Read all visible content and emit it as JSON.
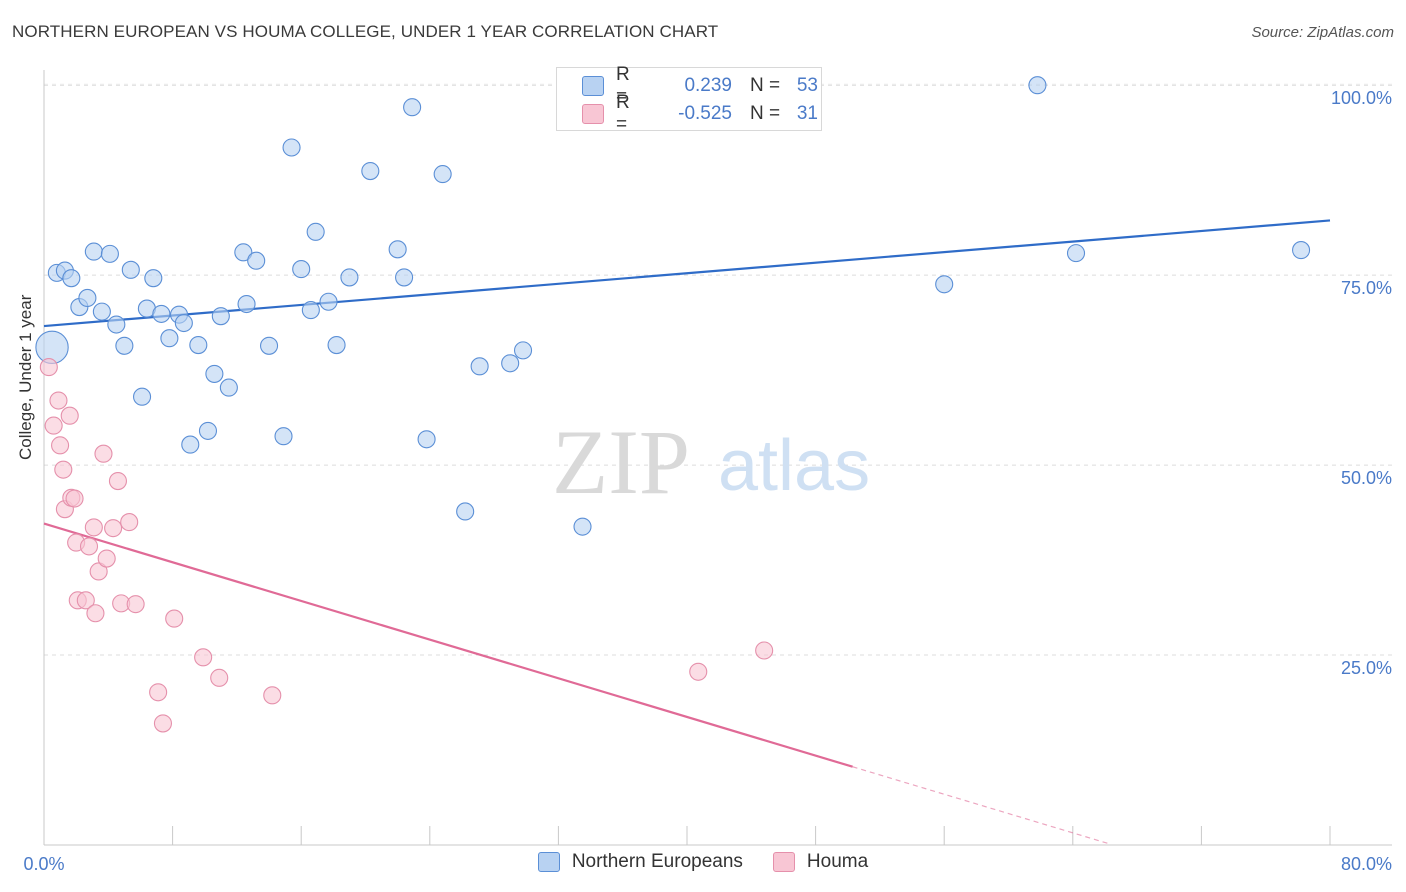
{
  "header": {
    "title": "NORTHERN EUROPEAN VS HOUMA COLLEGE, UNDER 1 YEAR CORRELATION CHART",
    "source": "Source: ZipAtlas.com"
  },
  "watermark": {
    "zip": "ZIP",
    "atlas": "atlas"
  },
  "legend_top": {
    "rows": [
      {
        "r_label": "R =",
        "r_value": "0.239",
        "n_label": "N =",
        "n_value": "53"
      },
      {
        "r_label": "R =",
        "r_value": "-0.525",
        "n_label": "N =",
        "n_value": "31"
      }
    ]
  },
  "legend_bottom": {
    "items": [
      {
        "label": "Northern Europeans"
      },
      {
        "label": "Houma"
      }
    ]
  },
  "colors": {
    "blue_fill": "#b8d2f2",
    "blue_stroke": "#5b8fd6",
    "blue_line": "#2f6cc8",
    "pink_fill": "#f8c6d4",
    "pink_stroke": "#e590ab",
    "pink_line": "#e06a96",
    "grid": "#dcdcdc",
    "tick_label": "#4a7ac8"
  },
  "chart_data": {
    "type": "scatter",
    "title": "NORTHERN EUROPEAN VS HOUMA COLLEGE, UNDER 1 YEAR CORRELATION CHART",
    "xlabel": "",
    "ylabel": "College, Under 1 year",
    "xlim": [
      0,
      80
    ],
    "ylim": [
      0,
      102
    ],
    "x_tick_labels": [
      "0.0%",
      "80.0%"
    ],
    "y_ticks": [
      25,
      50,
      75,
      100
    ],
    "y_tick_labels": [
      "25.0%",
      "50.0%",
      "75.0%",
      "100.0%"
    ],
    "grid": true,
    "legend_position": "top-center",
    "series": [
      {
        "name": "Northern Europeans",
        "color": "#5b8fd6",
        "points": [
          [
            0.5,
            65.5,
            1.9
          ],
          [
            0.8,
            75.3,
            1
          ],
          [
            1.3,
            75.6,
            1
          ],
          [
            1.7,
            74.6,
            1
          ],
          [
            2.2,
            70.8,
            1
          ],
          [
            2.7,
            72.0,
            1
          ],
          [
            3.1,
            78.1,
            1
          ],
          [
            3.6,
            70.2,
            1
          ],
          [
            4.1,
            77.8,
            1
          ],
          [
            4.5,
            68.5,
            1
          ],
          [
            5.0,
            65.7,
            1
          ],
          [
            5.4,
            75.7,
            1
          ],
          [
            6.1,
            59.0,
            1
          ],
          [
            6.4,
            70.6,
            1
          ],
          [
            6.8,
            74.6,
            1
          ],
          [
            7.3,
            69.9,
            1
          ],
          [
            7.8,
            66.7,
            1
          ],
          [
            8.4,
            69.8,
            1
          ],
          [
            8.7,
            68.7,
            1
          ],
          [
            9.1,
            52.7,
            1
          ],
          [
            9.6,
            65.8,
            1
          ],
          [
            10.2,
            54.5,
            1
          ],
          [
            10.6,
            62.0,
            1
          ],
          [
            11.0,
            69.6,
            1
          ],
          [
            11.5,
            60.2,
            1
          ],
          [
            12.4,
            78.0,
            1
          ],
          [
            12.6,
            71.2,
            1
          ],
          [
            13.2,
            76.9,
            1
          ],
          [
            14.0,
            65.7,
            1
          ],
          [
            14.9,
            53.8,
            1
          ],
          [
            15.4,
            91.8,
            1
          ],
          [
            16.0,
            75.8,
            1
          ],
          [
            16.6,
            70.4,
            1
          ],
          [
            16.9,
            80.7,
            1
          ],
          [
            17.7,
            71.5,
            1
          ],
          [
            18.2,
            65.8,
            1
          ],
          [
            19.0,
            74.7,
            1
          ],
          [
            20.3,
            88.7,
            1
          ],
          [
            22.0,
            78.4,
            1
          ],
          [
            22.4,
            74.7,
            1
          ],
          [
            22.9,
            97.1,
            1
          ],
          [
            23.8,
            53.4,
            1
          ],
          [
            24.8,
            88.3,
            1
          ],
          [
            26.2,
            43.9,
            1
          ],
          [
            27.1,
            63.0,
            1
          ],
          [
            29.0,
            63.4,
            1
          ],
          [
            29.8,
            65.1,
            1
          ],
          [
            33.5,
            41.9,
            1
          ],
          [
            41.0,
            100.0,
            1.25
          ],
          [
            56.0,
            73.8,
            1
          ],
          [
            61.8,
            100.0,
            1
          ],
          [
            64.2,
            77.9,
            1
          ],
          [
            78.2,
            78.3,
            1
          ]
        ],
        "trend": {
          "x": [
            0,
            80
          ],
          "y": [
            68.3,
            82.2
          ]
        }
      },
      {
        "name": "Houma",
        "color": "#e590ab",
        "points": [
          [
            0.3,
            62.9
          ],
          [
            0.6,
            55.2
          ],
          [
            0.9,
            58.5
          ],
          [
            1.0,
            52.6
          ],
          [
            1.2,
            49.4
          ],
          [
            1.3,
            44.2
          ],
          [
            1.6,
            56.5
          ],
          [
            1.7,
            45.7
          ],
          [
            1.9,
            45.6
          ],
          [
            2.0,
            39.8
          ],
          [
            2.1,
            32.2
          ],
          [
            2.6,
            32.2
          ],
          [
            2.8,
            39.3
          ],
          [
            3.1,
            41.8
          ],
          [
            3.2,
            30.5
          ],
          [
            3.4,
            36.0
          ],
          [
            3.7,
            51.5
          ],
          [
            3.9,
            37.7
          ],
          [
            4.3,
            41.7
          ],
          [
            4.6,
            47.9
          ],
          [
            4.8,
            31.8
          ],
          [
            5.3,
            42.5
          ],
          [
            5.7,
            31.7
          ],
          [
            7.1,
            20.1
          ],
          [
            7.4,
            16.0
          ],
          [
            8.1,
            29.8
          ],
          [
            9.9,
            24.7
          ],
          [
            10.9,
            22.0
          ],
          [
            14.2,
            19.7
          ],
          [
            40.7,
            22.8
          ],
          [
            44.8,
            25.6
          ]
        ],
        "trend": {
          "x": [
            0,
            50.3
          ],
          "y": [
            42.3,
            10.3
          ]
        },
        "trend_dashed": {
          "x": [
            50.3,
            66.2
          ],
          "y": [
            10.3,
            0.2
          ]
        }
      }
    ]
  }
}
